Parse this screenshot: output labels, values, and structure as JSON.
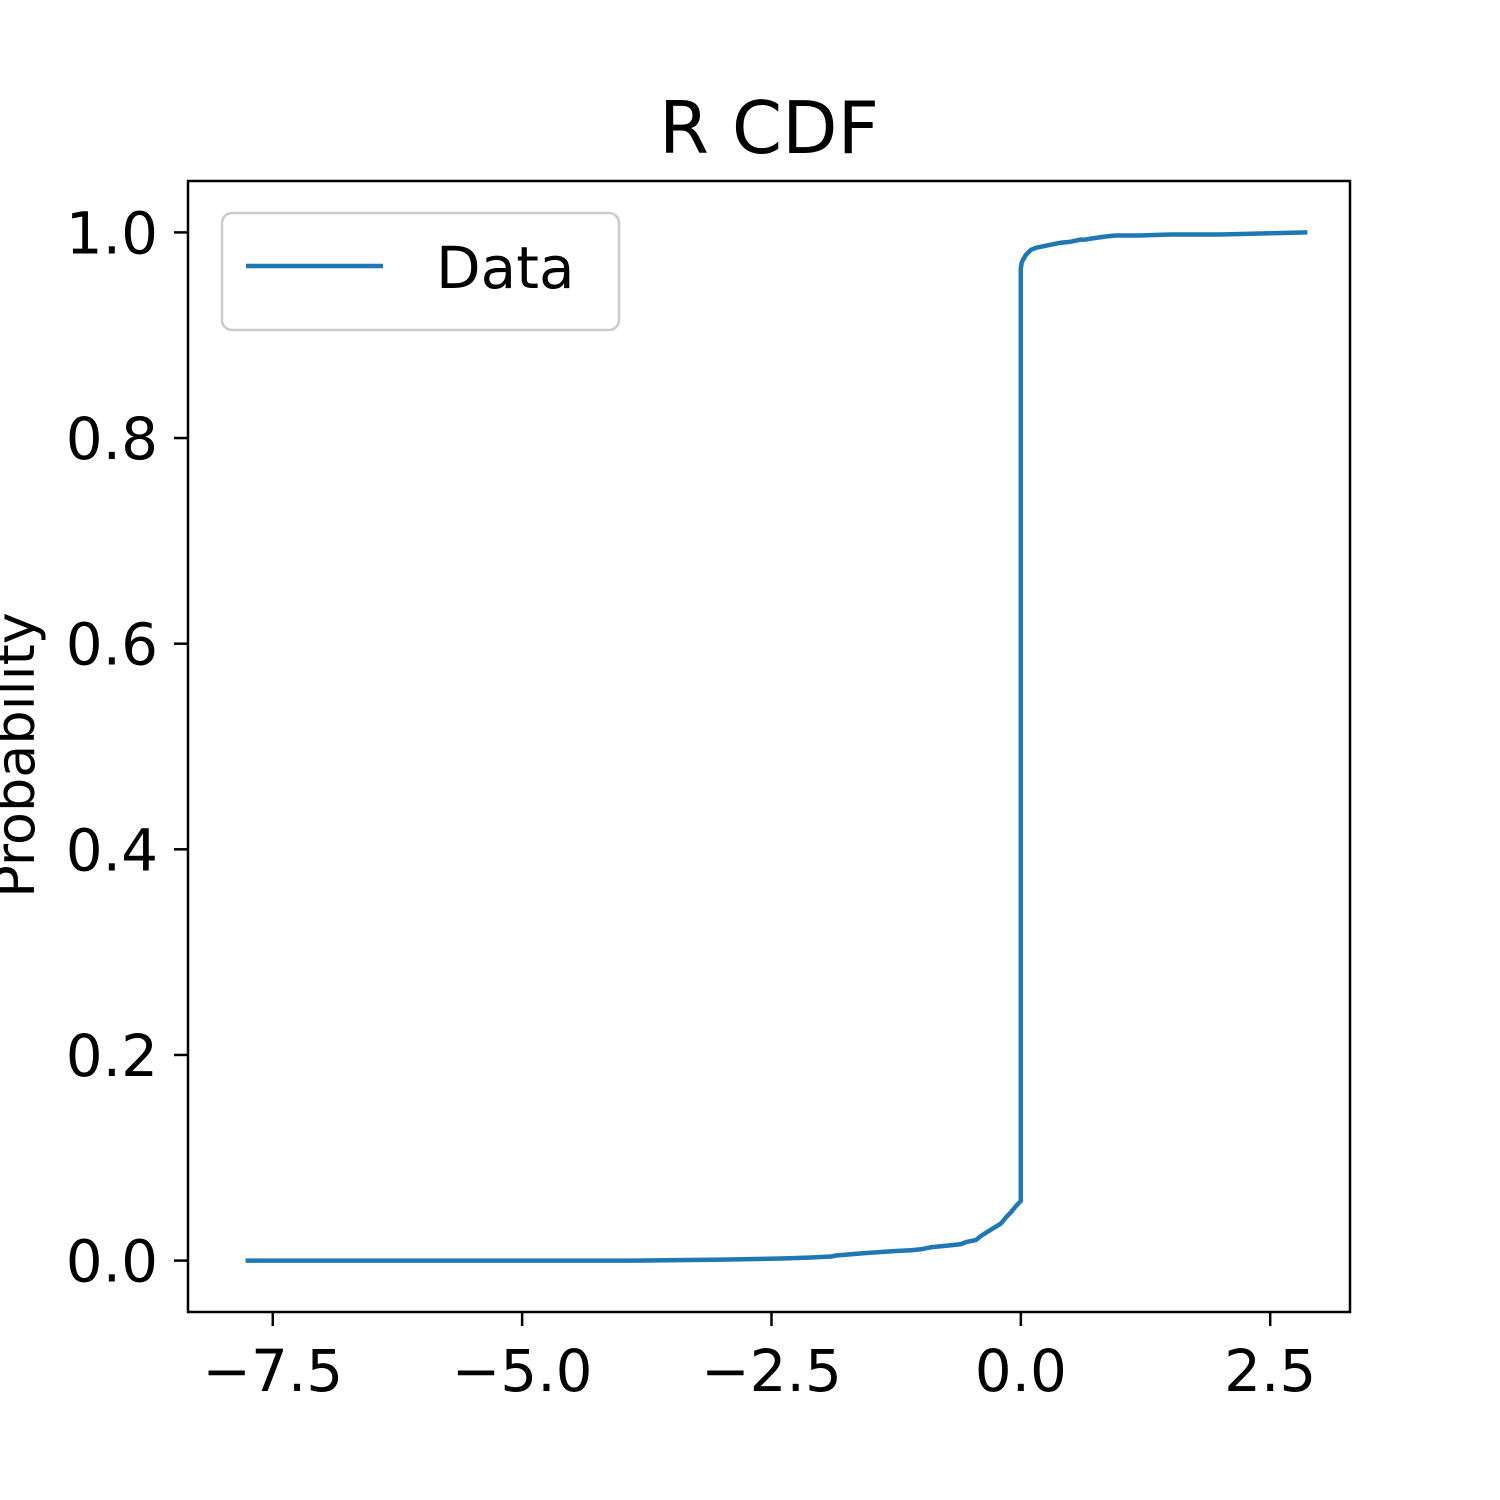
{
  "chart_data": {
    "type": "line",
    "title": "R CDF",
    "xlabel": "",
    "ylabel": "Probability",
    "xlim": [
      -8.35,
      3.3
    ],
    "ylim": [
      -0.05,
      1.05
    ],
    "x_ticks": [
      -7.5,
      -5.0,
      -2.5,
      0.0,
      2.5
    ],
    "x_tick_labels": [
      "−7.5",
      "−5.0",
      "−2.5",
      "0.0",
      "2.5"
    ],
    "y_ticks": [
      0.0,
      0.2,
      0.4,
      0.6,
      0.8,
      1.0
    ],
    "y_tick_labels": [
      "0.0",
      "0.2",
      "0.4",
      "0.6",
      "0.8",
      "1.0"
    ],
    "grid": false,
    "legend": {
      "position": "upper-left",
      "entries": [
        "Data"
      ]
    },
    "series": [
      {
        "name": "Data",
        "color": "#1f77b4",
        "x": [
          -7.75,
          -5.0,
          -3.9,
          -3.0,
          -2.4,
          -2.1,
          -1.9,
          -1.85,
          -1.6,
          -1.3,
          -1.1,
          -1.0,
          -0.9,
          -0.8,
          -0.7,
          -0.6,
          -0.55,
          -0.5,
          -0.45,
          -0.4,
          -0.3,
          -0.2,
          -0.15,
          -0.1,
          -0.05,
          0.0,
          0.0,
          0.005,
          0.01,
          0.02,
          0.05,
          0.1,
          0.15,
          0.2,
          0.3,
          0.4,
          0.5,
          0.6,
          0.65,
          0.7,
          0.85,
          0.95,
          1.0,
          1.2,
          1.5,
          2.0,
          2.85
        ],
        "y": [
          0.0,
          0.0,
          0.0,
          0.001,
          0.002,
          0.003,
          0.004,
          0.005,
          0.007,
          0.009,
          0.01,
          0.011,
          0.013,
          0.014,
          0.015,
          0.016,
          0.018,
          0.019,
          0.02,
          0.024,
          0.03,
          0.036,
          0.042,
          0.047,
          0.053,
          0.058,
          0.965,
          0.968,
          0.971,
          0.973,
          0.978,
          0.983,
          0.985,
          0.986,
          0.988,
          0.99,
          0.991,
          0.993,
          0.993,
          0.994,
          0.996,
          0.997,
          0.997,
          0.997,
          0.998,
          0.998,
          1.0
        ]
      }
    ]
  }
}
